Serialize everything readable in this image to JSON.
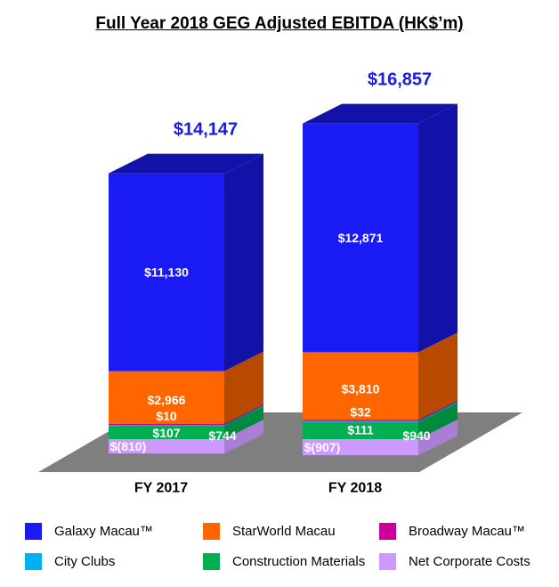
{
  "chart_data": {
    "type": "bar",
    "stacked": true,
    "three_d": true,
    "title": "Full Year 2018 GEG Adjusted EBITDA (HK$’m)",
    "categories": [
      "FY 2017",
      "FY 2018"
    ],
    "totals": [
      14147,
      16857
    ],
    "total_labels": [
      "$14,147",
      "$16,857"
    ],
    "series": [
      {
        "name": "Net Corporate Costs",
        "values": [
          -810,
          -907
        ],
        "labels": [
          "$(810)",
          "$(907)"
        ],
        "color": "#cc99ff",
        "side": "#a97fd6"
      },
      {
        "name": "Construction Materials",
        "values": [
          744,
          940
        ],
        "labels": [
          "$744",
          "$940"
        ],
        "color": "#00b050",
        "side": "#008a3e"
      },
      {
        "name": "City Clubs",
        "values": [
          107,
          111
        ],
        "labels": [
          "$107",
          "$111"
        ],
        "color": "#00b0f0",
        "side": "#0088ba"
      },
      {
        "name": "Broadway Macau™",
        "values": [
          10,
          32
        ],
        "labels": [
          "$10",
          "$32"
        ],
        "color": "#cc0099",
        "side": "#990073"
      },
      {
        "name": "StarWorld Macau",
        "values": [
          2966,
          3810
        ],
        "labels": [
          "$2,966",
          "$3,810"
        ],
        "color": "#ff6600",
        "side": "#b84a00"
      },
      {
        "name": "Galaxy Macau™",
        "values": [
          11130,
          12871
        ],
        "labels": [
          "$11,130",
          "$12,871"
        ],
        "color": "#1a1af5",
        "side": "#1212a8"
      }
    ],
    "legend": {
      "placement": "bottom",
      "items": [
        "Galaxy Macau™",
        "StarWorld Macau",
        "Broadway Macau™",
        "City Clubs",
        "Construction Materials",
        "Net Corporate Costs"
      ]
    },
    "colors": {
      "total_label": "#1a1ae6",
      "floor": "#7f7f7f",
      "data_label": "#ffffff"
    }
  }
}
